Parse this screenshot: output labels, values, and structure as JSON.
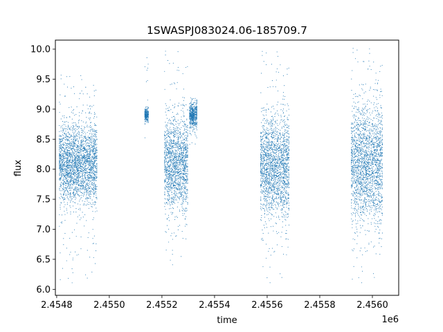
{
  "chart_data": {
    "type": "scatter",
    "title": "1SWASPJ083024.06-185709.7",
    "xlabel": "time",
    "ylabel": "flux",
    "x_offset_label": "1e6",
    "xlim": [
      2454795,
      2456100
    ],
    "ylim": [
      5.9,
      10.15
    ],
    "x_ticks": [
      2454800,
      2455000,
      2455200,
      2455400,
      2455600,
      2455800,
      2456000
    ],
    "x_tick_labels": [
      "2.4548",
      "2.4550",
      "2.4552",
      "2.4554",
      "2.4556",
      "2.4558",
      "2.4560"
    ],
    "y_ticks": [
      6.0,
      6.5,
      7.0,
      7.5,
      8.0,
      8.5,
      9.0,
      9.5,
      10.0
    ],
    "y_tick_labels": [
      "6.0",
      "6.5",
      "7.0",
      "7.5",
      "8.0",
      "8.5",
      "9.0",
      "9.5",
      "10.0"
    ],
    "grid": false,
    "legend": "none",
    "marker_color": "#1f77b4",
    "observing_seasons": [
      {
        "x_range": [
          2454810,
          2454955
        ],
        "flux_median": 8.1,
        "flux_core_range": [
          7.3,
          8.6
        ],
        "flux_extreme_range": [
          6.1,
          9.6
        ]
      },
      {
        "x_range": [
          2455135,
          2455150
        ],
        "flux_median": 8.9,
        "flux_core_range": [
          8.8,
          9.0
        ],
        "flux_extreme_range": [
          8.5,
          9.9
        ]
      },
      {
        "x_range": [
          2455210,
          2455300
        ],
        "flux_median": 8.1,
        "flux_core_range": [
          7.2,
          8.7
        ],
        "flux_extreme_range": [
          6.4,
          10.0
        ]
      },
      {
        "x_range": [
          2455305,
          2455335
        ],
        "flux_median": 8.9,
        "flux_core_range": [
          8.7,
          9.1
        ],
        "flux_extreme_range": [
          8.4,
          9.2
        ]
      },
      {
        "x_range": [
          2455575,
          2455685
        ],
        "flux_median": 8.05,
        "flux_core_range": [
          7.2,
          8.8
        ],
        "flux_extreme_range": [
          6.1,
          10.0
        ]
      },
      {
        "x_range": [
          2455920,
          2456040
        ],
        "flux_median": 8.1,
        "flux_core_range": [
          7.0,
          8.9
        ],
        "flux_extreme_range": [
          6.1,
          10.05
        ]
      }
    ]
  }
}
